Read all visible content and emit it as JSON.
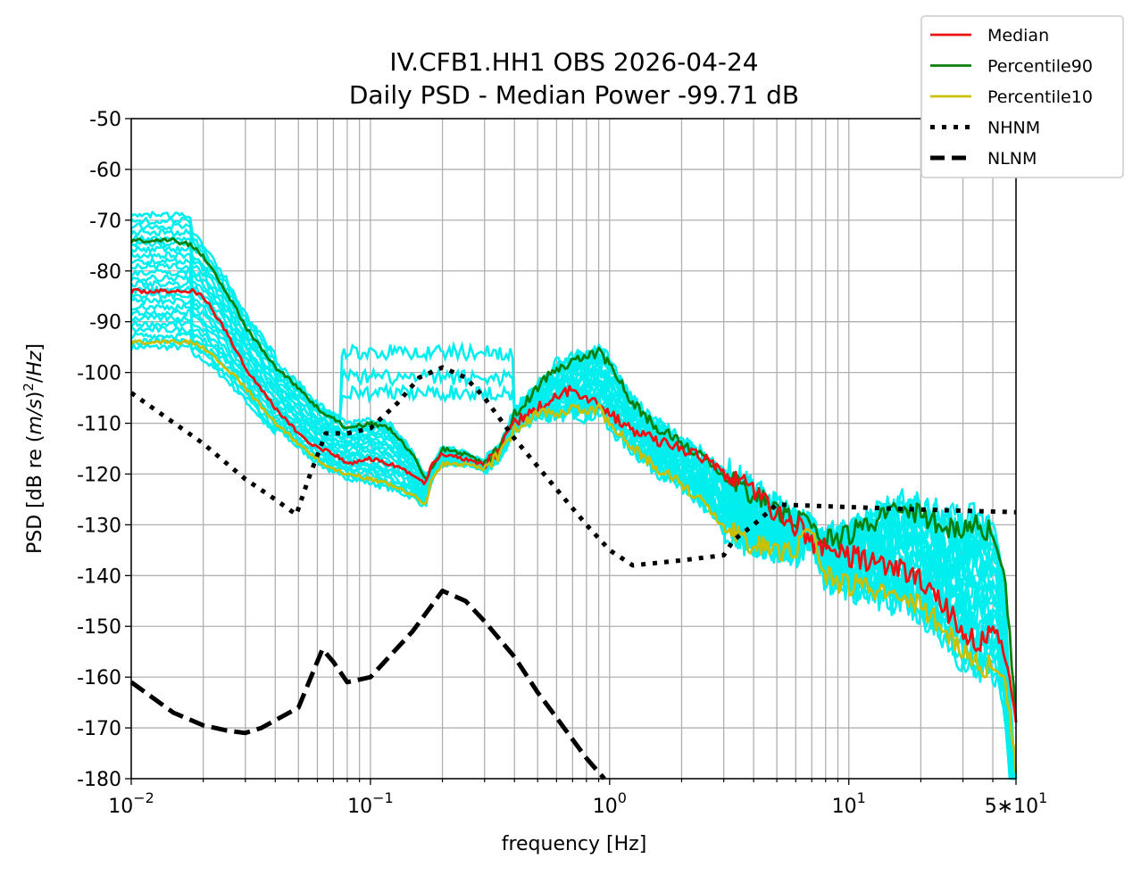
{
  "chart_data": {
    "type": "line",
    "title": "IV.CFB1.HH1 OBS 2026-04-24",
    "subtitle": "Daily PSD - Median Power -99.71 dB",
    "xlabel": "frequency [Hz]",
    "ylabel_parts": {
      "prefix": "PSD [dB re ",
      "ms": "m/s",
      "sup": "2",
      "slash": "/",
      "hz": "Hz",
      "suffix": "]"
    },
    "x_scale": "log",
    "xlim": [
      0.01,
      50
    ],
    "ylim": [
      -180,
      -50
    ],
    "grid": true,
    "legend_position": "upper-right",
    "x_ticks": [
      {
        "value": 0.01,
        "base": "10",
        "exp": "−2"
      },
      {
        "value": 0.1,
        "base": "10",
        "exp": "−1"
      },
      {
        "value": 1,
        "base": "10",
        "exp": "0"
      },
      {
        "value": 10,
        "base": "10",
        "exp": "1"
      },
      {
        "value": 50,
        "base": "5∗10",
        "exp": "1"
      }
    ],
    "y_ticks": [
      {
        "value": -50,
        "label": "-50"
      },
      {
        "value": -60,
        "label": "-60"
      },
      {
        "value": -70,
        "label": "-70"
      },
      {
        "value": -80,
        "label": "-80"
      },
      {
        "value": -90,
        "label": "-90"
      },
      {
        "value": -100,
        "label": "-100"
      },
      {
        "value": -110,
        "label": "-110"
      },
      {
        "value": -120,
        "label": "-120"
      },
      {
        "value": -130,
        "label": "-130"
      },
      {
        "value": -140,
        "label": "-140"
      },
      {
        "value": -150,
        "label": "-150"
      },
      {
        "value": -160,
        "label": "-160"
      },
      {
        "value": -170,
        "label": "-170"
      },
      {
        "value": -180,
        "label": "-180"
      }
    ],
    "series": [
      {
        "name": "Median",
        "color": "#ee1111",
        "style": "solid",
        "x": [
          0.01,
          0.015,
          0.018,
          0.02,
          0.025,
          0.03,
          0.04,
          0.05,
          0.06,
          0.07,
          0.08,
          0.1,
          0.12,
          0.15,
          0.17,
          0.18,
          0.2,
          0.25,
          0.3,
          0.35,
          0.4,
          0.5,
          0.6,
          0.7,
          0.8,
          0.9,
          1.0,
          1.2,
          1.5,
          2,
          2.5,
          3,
          4,
          5,
          6,
          7,
          8,
          10,
          12,
          15,
          20,
          25,
          30,
          35,
          40,
          45,
          50
        ],
        "y": [
          -84,
          -84,
          -84,
          -85,
          -92,
          -99,
          -107,
          -112,
          -115,
          -116,
          -118,
          -117,
          -118,
          -120,
          -122,
          -118,
          -116,
          -117,
          -118,
          -115,
          -110,
          -107,
          -105,
          -103,
          -105,
          -106,
          -108,
          -111,
          -113,
          -115,
          -117,
          -119,
          -123,
          -128,
          -130,
          -133,
          -135,
          -136,
          -137,
          -138,
          -141,
          -146,
          -151,
          -154,
          -150,
          -155,
          -170
        ]
      },
      {
        "name": "Percentile90",
        "color": "#0a800a",
        "style": "solid",
        "x": [
          0.01,
          0.015,
          0.018,
          0.02,
          0.025,
          0.03,
          0.04,
          0.05,
          0.06,
          0.07,
          0.08,
          0.1,
          0.12,
          0.15,
          0.17,
          0.18,
          0.2,
          0.25,
          0.3,
          0.35,
          0.4,
          0.5,
          0.6,
          0.7,
          0.8,
          0.9,
          1.0,
          1.2,
          1.5,
          2,
          2.5,
          3,
          4,
          5,
          6,
          7,
          8,
          10,
          12,
          15,
          20,
          25,
          30,
          35,
          40,
          45,
          50
        ],
        "y": [
          -74,
          -74,
          -75,
          -77,
          -84,
          -91,
          -99,
          -103,
          -107,
          -109,
          -111,
          -110,
          -111,
          -116,
          -121,
          -119,
          -115,
          -116,
          -118,
          -115,
          -108,
          -103,
          -99,
          -98,
          -97,
          -96,
          -98,
          -105,
          -110,
          -114,
          -117,
          -120,
          -124,
          -127,
          -129,
          -131,
          -133,
          -132,
          -130,
          -127,
          -128,
          -130,
          -131,
          -130,
          -132,
          -140,
          -168
        ]
      },
      {
        "name": "Percentile10",
        "color": "#c8c000",
        "style": "solid",
        "x": [
          0.01,
          0.015,
          0.018,
          0.02,
          0.025,
          0.03,
          0.04,
          0.05,
          0.06,
          0.07,
          0.08,
          0.1,
          0.12,
          0.15,
          0.17,
          0.18,
          0.2,
          0.25,
          0.3,
          0.35,
          0.4,
          0.5,
          0.6,
          0.7,
          0.8,
          0.9,
          1.0,
          1.2,
          1.5,
          2,
          2.5,
          3,
          4,
          5,
          6,
          7,
          8,
          10,
          12,
          15,
          20,
          25,
          30,
          35,
          40,
          45,
          50
        ],
        "y": [
          -94,
          -94,
          -94,
          -95,
          -99,
          -103,
          -110,
          -114,
          -117,
          -119,
          -120,
          -121,
          -122,
          -124,
          -126,
          -121,
          -118,
          -118,
          -119,
          -116,
          -111,
          -108,
          -108,
          -107,
          -108,
          -107,
          -110,
          -114,
          -118,
          -122,
          -126,
          -130,
          -134,
          -135,
          -135,
          -132,
          -140,
          -142,
          -142,
          -144,
          -146,
          -150,
          -155,
          -158,
          -158,
          -160,
          -178
        ]
      },
      {
        "name": "NHNM",
        "color": "#000000",
        "style": "dotted",
        "x": [
          0.01,
          0.02,
          0.03,
          0.04,
          0.049,
          0.055,
          0.065,
          0.08,
          0.1,
          0.13,
          0.16,
          0.2,
          0.25,
          0.3,
          0.4,
          0.6,
          0.8,
          1.0,
          1.25,
          2,
          3,
          3.3,
          4,
          5,
          10,
          20,
          50
        ],
        "y": [
          -104,
          -114,
          -121,
          -125,
          -128,
          -121,
          -112,
          -112,
          -111,
          -106,
          -101,
          -99,
          -101,
          -105,
          -113,
          -123,
          -130,
          -135,
          -138,
          -137,
          -136,
          -133,
          -130,
          -126,
          -126.5,
          -127,
          -127.5
        ]
      },
      {
        "name": "NLNM",
        "color": "#000000",
        "style": "dashed",
        "x": [
          0.01,
          0.015,
          0.02,
          0.025,
          0.03,
          0.035,
          0.04,
          0.05,
          0.063,
          0.07,
          0.08,
          0.1,
          0.15,
          0.2,
          0.25,
          0.3,
          0.4,
          0.5,
          0.6,
          0.8,
          0.95
        ],
        "y": [
          -161,
          -167,
          -169.5,
          -170.5,
          -171,
          -170,
          -168.5,
          -166,
          -154.5,
          -157,
          -161,
          -160,
          -151,
          -143,
          -145,
          -149,
          -156,
          -163,
          -168,
          -176,
          -180
        ]
      }
    ],
    "background_traces": {
      "color": "#00eeee",
      "count": 24,
      "note_hidden": false
    }
  }
}
